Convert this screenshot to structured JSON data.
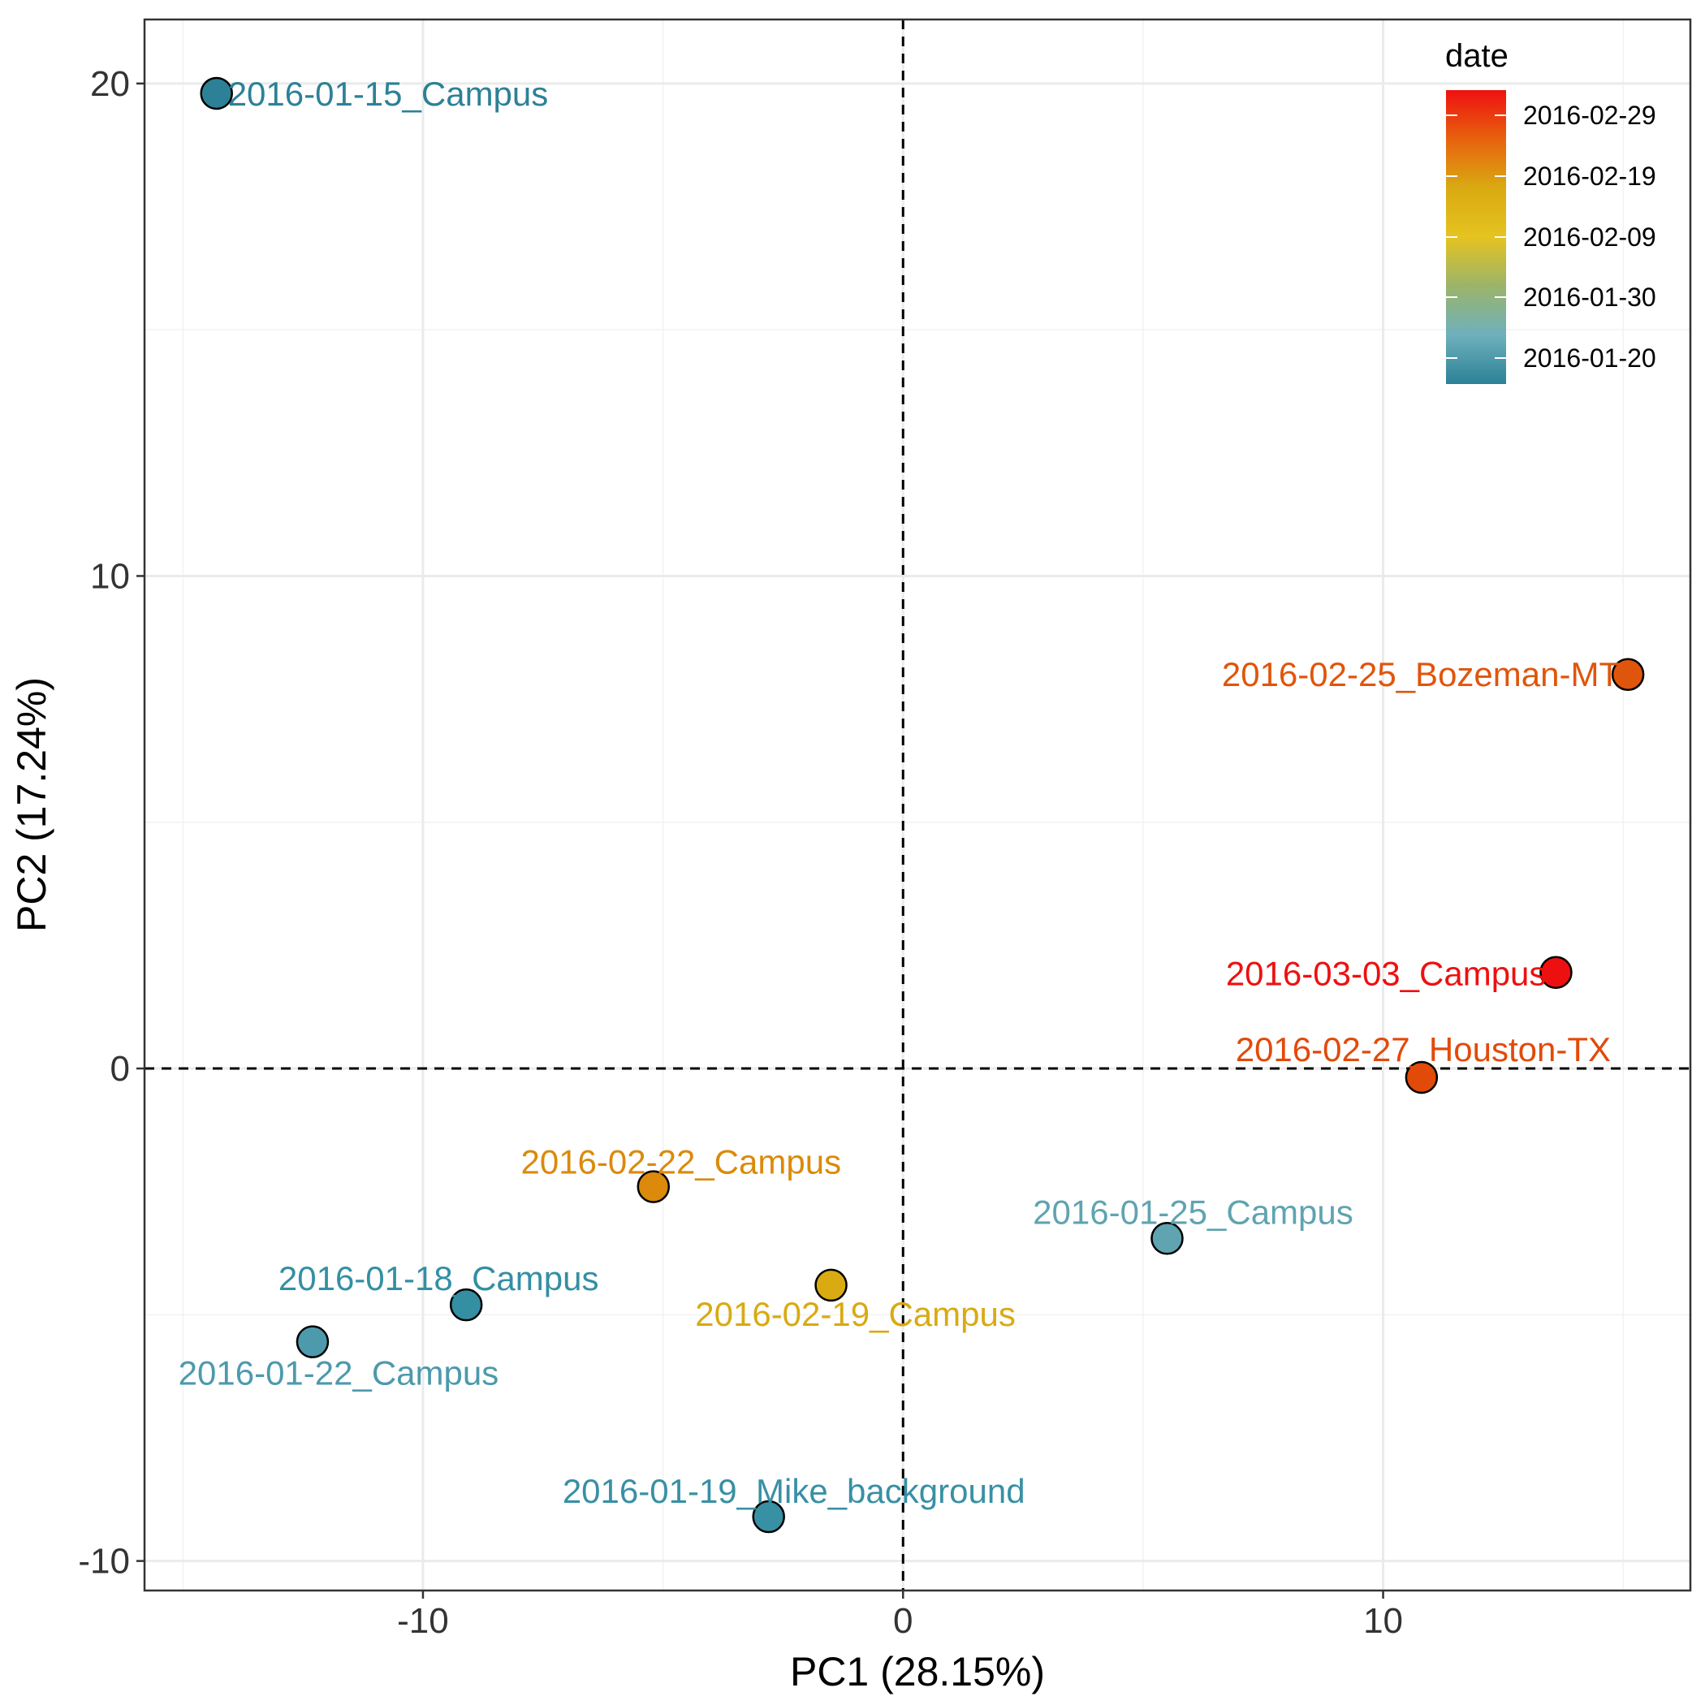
{
  "chart_data": {
    "type": "scatter",
    "title": "",
    "xlabel": "PC1 (28.15%)",
    "ylabel": "PC2 (17.24%)",
    "xlim": [
      -15.8,
      16.4
    ],
    "ylim": [
      -10.6,
      21.3
    ],
    "x_ticks": [
      -10,
      0,
      10
    ],
    "y_ticks": [
      -10,
      0,
      10,
      20
    ],
    "x_tick_labels": [
      "-10",
      "0",
      "10"
    ],
    "y_tick_labels": [
      "-10",
      "0",
      "10",
      "20"
    ],
    "grid": true,
    "reference_lines": [
      {
        "axis": "x",
        "value": 0,
        "style": "dashed"
      },
      {
        "axis": "y",
        "value": 0,
        "style": "dashed"
      }
    ],
    "points": [
      {
        "label": "2016-01-15_Campus",
        "x": -14.3,
        "y": 19.8,
        "color": "#2C8197"
      },
      {
        "label": "2016-02-25_Bozeman-MT",
        "x": 15.1,
        "y": 8.0,
        "color": "#E0550C"
      },
      {
        "label": "2016-03-03_Campus",
        "x": 13.6,
        "y": 1.95,
        "color": "#EE1010"
      },
      {
        "label": "2016-02-27_Houston-TX",
        "x": 10.8,
        "y": -0.18,
        "color": "#E24A0A"
      },
      {
        "label": "2016-02-22_Campus",
        "x": -5.2,
        "y": -2.4,
        "color": "#DB8A0B"
      },
      {
        "label": "2016-01-25_Campus",
        "x": 5.5,
        "y": -3.45,
        "color": "#5FA4B0"
      },
      {
        "label": "2016-02-19_Campus",
        "x": -1.5,
        "y": -4.4,
        "color": "#D9AA12"
      },
      {
        "label": "2016-01-18_Campus",
        "x": -9.1,
        "y": -4.8,
        "color": "#348FA3"
      },
      {
        "label": "2016-01-22_Campus",
        "x": -12.3,
        "y": -5.55,
        "color": "#4C9AAC"
      },
      {
        "label": "2016-01-19_Mike_background",
        "x": -2.8,
        "y": -9.1,
        "color": "#3890A4"
      }
    ],
    "legend": {
      "title": "date",
      "placement": "top-right",
      "type": "colorbar",
      "labels": [
        "2016-02-29",
        "2016-02-19",
        "2016-02-09",
        "2016-01-30",
        "2016-01-20"
      ],
      "gradient_colors": [
        "#EE1010",
        "#E8620E",
        "#D9AA12",
        "#E5C320",
        "#9BB46A",
        "#6FB0BC",
        "#2C8197"
      ]
    }
  }
}
